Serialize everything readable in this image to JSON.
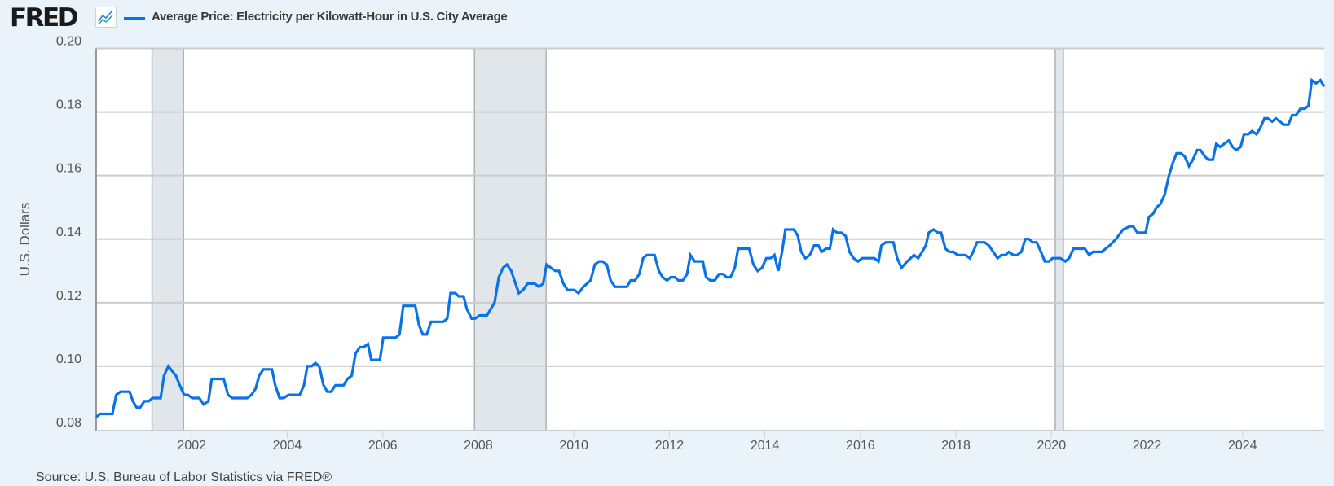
{
  "header": {
    "logo_text": "FRED",
    "title": "Average Price: Electricity per Kilowatt-Hour in U.S. City Average",
    "series_color": "#0a72e8"
  },
  "footer": {
    "source": "Source: U.S. Bureau of Labor Statistics via FRED®"
  },
  "chart_data": {
    "type": "line",
    "title": "",
    "xlabel": "",
    "ylabel": "U.S. Dollars",
    "xlim": [
      2000.0,
      2025.71
    ],
    "ylim": [
      0.08,
      0.2
    ],
    "grid": "horizontal",
    "x_ticks": [
      "2002",
      "2004",
      "2006",
      "2008",
      "2010",
      "2012",
      "2014",
      "2016",
      "2018",
      "2020",
      "2022",
      "2024"
    ],
    "y_ticks": [
      "0.08",
      "0.10",
      "0.12",
      "0.14",
      "0.16",
      "0.18",
      "0.20"
    ],
    "recessions": [
      [
        2001.17,
        2001.83
      ],
      [
        2007.92,
        2009.42
      ],
      [
        2020.08,
        2020.25
      ]
    ],
    "series": [
      {
        "name": "Average Price: Electricity per Kilowatt-Hour in U.S. City Average",
        "color": "#0a72e8",
        "points": [
          [
            2000.0,
            0.084
          ],
          [
            2000.08,
            0.085
          ],
          [
            2000.34,
            0.085
          ],
          [
            2000.42,
            0.091
          ],
          [
            2000.51,
            0.092
          ],
          [
            2000.7,
            0.092
          ],
          [
            2000.77,
            0.089
          ],
          [
            2000.85,
            0.087
          ],
          [
            2000.92,
            0.087
          ],
          [
            2001.01,
            0.089
          ],
          [
            2001.1,
            0.089
          ],
          [
            2001.18,
            0.09
          ],
          [
            2001.27,
            0.09
          ],
          [
            2001.35,
            0.09
          ],
          [
            2001.42,
            0.097
          ],
          [
            2001.51,
            0.1
          ],
          [
            2001.67,
            0.097
          ],
          [
            2001.75,
            0.094
          ],
          [
            2001.84,
            0.091
          ],
          [
            2001.92,
            0.091
          ],
          [
            2002.01,
            0.09
          ],
          [
            2002.16,
            0.09
          ],
          [
            2002.25,
            0.088
          ],
          [
            2002.35,
            0.089
          ],
          [
            2002.42,
            0.096
          ],
          [
            2002.67,
            0.096
          ],
          [
            2002.76,
            0.091
          ],
          [
            2002.85,
            0.09
          ],
          [
            2003.16,
            0.09
          ],
          [
            2003.25,
            0.091
          ],
          [
            2003.34,
            0.093
          ],
          [
            2003.41,
            0.097
          ],
          [
            2003.5,
            0.099
          ],
          [
            2003.68,
            0.099
          ],
          [
            2003.75,
            0.094
          ],
          [
            2003.84,
            0.09
          ],
          [
            2003.92,
            0.09
          ],
          [
            2004.03,
            0.091
          ],
          [
            2004.26,
            0.091
          ],
          [
            2004.35,
            0.094
          ],
          [
            2004.42,
            0.1
          ],
          [
            2004.51,
            0.1
          ],
          [
            2004.59,
            0.101
          ],
          [
            2004.67,
            0.1
          ],
          [
            2004.76,
            0.094
          ],
          [
            2004.84,
            0.092
          ],
          [
            2004.92,
            0.092
          ],
          [
            2005.01,
            0.094
          ],
          [
            2005.18,
            0.094
          ],
          [
            2005.26,
            0.096
          ],
          [
            2005.35,
            0.097
          ],
          [
            2005.43,
            0.104
          ],
          [
            2005.52,
            0.106
          ],
          [
            2005.6,
            0.106
          ],
          [
            2005.69,
            0.107
          ],
          [
            2005.76,
            0.102
          ],
          [
            2005.94,
            0.102
          ],
          [
            2006.01,
            0.109
          ],
          [
            2006.1,
            0.109
          ],
          [
            2006.18,
            0.109
          ],
          [
            2006.27,
            0.109
          ],
          [
            2006.35,
            0.11
          ],
          [
            2006.43,
            0.119
          ],
          [
            2006.68,
            0.119
          ],
          [
            2006.76,
            0.113
          ],
          [
            2006.84,
            0.11
          ],
          [
            2006.92,
            0.11
          ],
          [
            2007.01,
            0.114
          ],
          [
            2007.27,
            0.114
          ],
          [
            2007.35,
            0.115
          ],
          [
            2007.42,
            0.123
          ],
          [
            2007.52,
            0.123
          ],
          [
            2007.59,
            0.122
          ],
          [
            2007.69,
            0.122
          ],
          [
            2007.76,
            0.118
          ],
          [
            2007.86,
            0.115
          ],
          [
            2007.93,
            0.115
          ],
          [
            2008.03,
            0.116
          ],
          [
            2008.18,
            0.116
          ],
          [
            2008.34,
            0.12
          ],
          [
            2008.43,
            0.128
          ],
          [
            2008.52,
            0.131
          ],
          [
            2008.6,
            0.132
          ],
          [
            2008.69,
            0.13
          ],
          [
            2008.78,
            0.126
          ],
          [
            2008.85,
            0.123
          ],
          [
            2008.94,
            0.124
          ],
          [
            2009.03,
            0.126
          ],
          [
            2009.18,
            0.126
          ],
          [
            2009.27,
            0.125
          ],
          [
            2009.36,
            0.126
          ],
          [
            2009.43,
            0.132
          ],
          [
            2009.52,
            0.131
          ],
          [
            2009.61,
            0.13
          ],
          [
            2009.69,
            0.13
          ],
          [
            2009.78,
            0.126
          ],
          [
            2009.87,
            0.124
          ],
          [
            2010.01,
            0.124
          ],
          [
            2010.1,
            0.123
          ],
          [
            2010.2,
            0.125
          ],
          [
            2010.35,
            0.127
          ],
          [
            2010.44,
            0.132
          ],
          [
            2010.53,
            0.133
          ],
          [
            2010.6,
            0.133
          ],
          [
            2010.69,
            0.132
          ],
          [
            2010.77,
            0.127
          ],
          [
            2010.86,
            0.125
          ],
          [
            2011.11,
            0.125
          ],
          [
            2011.19,
            0.127
          ],
          [
            2011.28,
            0.127
          ],
          [
            2011.37,
            0.129
          ],
          [
            2011.45,
            0.134
          ],
          [
            2011.53,
            0.135
          ],
          [
            2011.69,
            0.135
          ],
          [
            2011.78,
            0.13
          ],
          [
            2011.86,
            0.128
          ],
          [
            2011.95,
            0.127
          ],
          [
            2012.03,
            0.128
          ],
          [
            2012.12,
            0.128
          ],
          [
            2012.19,
            0.127
          ],
          [
            2012.28,
            0.127
          ],
          [
            2012.37,
            0.129
          ],
          [
            2012.44,
            0.135
          ],
          [
            2012.53,
            0.133
          ],
          [
            2012.7,
            0.133
          ],
          [
            2012.77,
            0.128
          ],
          [
            2012.86,
            0.127
          ],
          [
            2012.95,
            0.127
          ],
          [
            2013.04,
            0.129
          ],
          [
            2013.13,
            0.129
          ],
          [
            2013.2,
            0.128
          ],
          [
            2013.28,
            0.128
          ],
          [
            2013.37,
            0.131
          ],
          [
            2013.44,
            0.137
          ],
          [
            2013.67,
            0.137
          ],
          [
            2013.76,
            0.132
          ],
          [
            2013.85,
            0.13
          ],
          [
            2013.94,
            0.131
          ],
          [
            2014.03,
            0.134
          ],
          [
            2014.12,
            0.134
          ],
          [
            2014.2,
            0.135
          ],
          [
            2014.28,
            0.13
          ],
          [
            2014.36,
            0.136
          ],
          [
            2014.43,
            0.143
          ],
          [
            2014.61,
            0.143
          ],
          [
            2014.69,
            0.141
          ],
          [
            2014.76,
            0.136
          ],
          [
            2014.85,
            0.134
          ],
          [
            2014.94,
            0.135
          ],
          [
            2015.03,
            0.138
          ],
          [
            2015.12,
            0.138
          ],
          [
            2015.19,
            0.136
          ],
          [
            2015.28,
            0.137
          ],
          [
            2015.36,
            0.137
          ],
          [
            2015.43,
            0.143
          ],
          [
            2015.51,
            0.142
          ],
          [
            2015.6,
            0.142
          ],
          [
            2015.69,
            0.141
          ],
          [
            2015.77,
            0.136
          ],
          [
            2015.86,
            0.134
          ],
          [
            2015.95,
            0.133
          ],
          [
            2016.04,
            0.134
          ],
          [
            2016.29,
            0.134
          ],
          [
            2016.38,
            0.133
          ],
          [
            2016.44,
            0.138
          ],
          [
            2016.53,
            0.139
          ],
          [
            2016.69,
            0.139
          ],
          [
            2016.77,
            0.134
          ],
          [
            2016.86,
            0.131
          ],
          [
            2016.98,
            0.133
          ],
          [
            2017.12,
            0.135
          ],
          [
            2017.21,
            0.134
          ],
          [
            2017.29,
            0.136
          ],
          [
            2017.37,
            0.138
          ],
          [
            2017.43,
            0.142
          ],
          [
            2017.53,
            0.143
          ],
          [
            2017.62,
            0.142
          ],
          [
            2017.69,
            0.142
          ],
          [
            2017.78,
            0.137
          ],
          [
            2017.86,
            0.136
          ],
          [
            2017.95,
            0.136
          ],
          [
            2018.03,
            0.135
          ],
          [
            2018.2,
            0.135
          ],
          [
            2018.29,
            0.134
          ],
          [
            2018.36,
            0.136
          ],
          [
            2018.44,
            0.139
          ],
          [
            2018.6,
            0.139
          ],
          [
            2018.69,
            0.138
          ],
          [
            2018.78,
            0.136
          ],
          [
            2018.87,
            0.134
          ],
          [
            2018.95,
            0.135
          ],
          [
            2019.04,
            0.135
          ],
          [
            2019.11,
            0.136
          ],
          [
            2019.2,
            0.135
          ],
          [
            2019.28,
            0.135
          ],
          [
            2019.37,
            0.136
          ],
          [
            2019.45,
            0.14
          ],
          [
            2019.53,
            0.14
          ],
          [
            2019.61,
            0.139
          ],
          [
            2019.69,
            0.139
          ],
          [
            2019.78,
            0.136
          ],
          [
            2019.86,
            0.133
          ],
          [
            2019.95,
            0.133
          ],
          [
            2020.02,
            0.134
          ],
          [
            2020.19,
            0.134
          ],
          [
            2020.29,
            0.133
          ],
          [
            2020.37,
            0.134
          ],
          [
            2020.46,
            0.137
          ],
          [
            2020.7,
            0.137
          ],
          [
            2020.79,
            0.135
          ],
          [
            2020.87,
            0.136
          ],
          [
            2021.05,
            0.136
          ],
          [
            2021.22,
            0.138
          ],
          [
            2021.35,
            0.14
          ],
          [
            2021.5,
            0.143
          ],
          [
            2021.64,
            0.144
          ],
          [
            2021.71,
            0.144
          ],
          [
            2021.8,
            0.142
          ],
          [
            2021.97,
            0.142
          ],
          [
            2022.04,
            0.147
          ],
          [
            2022.13,
            0.148
          ],
          [
            2022.2,
            0.15
          ],
          [
            2022.28,
            0.151
          ],
          [
            2022.37,
            0.154
          ],
          [
            2022.46,
            0.16
          ],
          [
            2022.54,
            0.164
          ],
          [
            2022.62,
            0.167
          ],
          [
            2022.71,
            0.167
          ],
          [
            2022.79,
            0.166
          ],
          [
            2022.88,
            0.163
          ],
          [
            2022.96,
            0.165
          ],
          [
            2023.05,
            0.168
          ],
          [
            2023.12,
            0.168
          ],
          [
            2023.21,
            0.166
          ],
          [
            2023.28,
            0.165
          ],
          [
            2023.38,
            0.165
          ],
          [
            2023.45,
            0.17
          ],
          [
            2023.53,
            0.169
          ],
          [
            2023.62,
            0.17
          ],
          [
            2023.71,
            0.171
          ],
          [
            2023.79,
            0.169
          ],
          [
            2023.87,
            0.168
          ],
          [
            2023.96,
            0.169
          ],
          [
            2024.03,
            0.173
          ],
          [
            2024.12,
            0.173
          ],
          [
            2024.2,
            0.174
          ],
          [
            2024.29,
            0.173
          ],
          [
            2024.37,
            0.175
          ],
          [
            2024.46,
            0.178
          ],
          [
            2024.53,
            0.178
          ],
          [
            2024.62,
            0.177
          ],
          [
            2024.7,
            0.178
          ],
          [
            2024.78,
            0.177
          ],
          [
            2024.87,
            0.176
          ],
          [
            2024.96,
            0.176
          ],
          [
            2025.04,
            0.179
          ],
          [
            2025.12,
            0.179
          ],
          [
            2025.21,
            0.181
          ],
          [
            2025.3,
            0.181
          ],
          [
            2025.38,
            0.182
          ],
          [
            2025.45,
            0.19
          ],
          [
            2025.54,
            0.189
          ],
          [
            2025.63,
            0.19
          ],
          [
            2025.71,
            0.188
          ]
        ]
      }
    ]
  }
}
